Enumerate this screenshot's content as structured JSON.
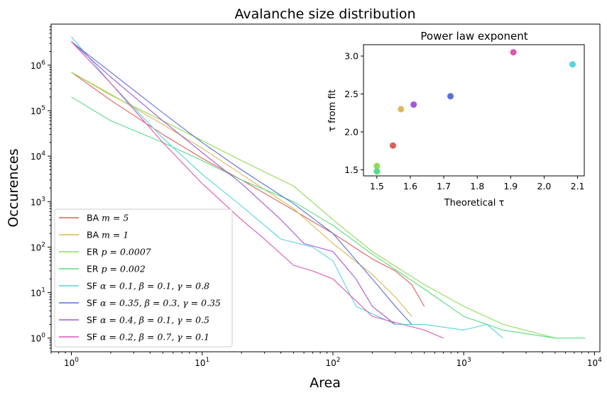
{
  "chart_data": [
    {
      "type": "line",
      "title": "Avalanche size distribution",
      "xlabel": "Area",
      "ylabel": "Occurences",
      "xscale": "log",
      "yscale": "log",
      "xlim": [
        0.7,
        11000
      ],
      "ylim": [
        0.5,
        8000000
      ],
      "xticks": [
        {
          "value": 1,
          "label": "10^0"
        },
        {
          "value": 10,
          "label": "10^1"
        },
        {
          "value": 100,
          "label": "10^2"
        },
        {
          "value": 1000,
          "label": "10^3"
        },
        {
          "value": 10000,
          "label": "10^4"
        }
      ],
      "yticks": [
        {
          "value": 1,
          "label": "10^0"
        },
        {
          "value": 10,
          "label": "10^1"
        },
        {
          "value": 100,
          "label": "10^2"
        },
        {
          "value": 1000,
          "label": "10^3"
        },
        {
          "value": 10000,
          "label": "10^4"
        },
        {
          "value": 100000,
          "label": "10^5"
        },
        {
          "value": 1000000,
          "label": "10^6"
        }
      ],
      "grid": false,
      "legend_position": "lower-left",
      "series": [
        {
          "name": "BA m=5",
          "legend_prefix": "BA ",
          "legend_math": "m = 5",
          "color": "#db5f57",
          "points": [
            [
              1,
              700000
            ],
            [
              2,
              170000
            ],
            [
              5,
              30000
            ],
            [
              10,
              9000
            ],
            [
              20,
              3000
            ],
            [
              50,
              650
            ],
            [
              100,
              200
            ],
            [
              200,
              55
            ],
            [
              300,
              30
            ],
            [
              400,
              15
            ],
            [
              500,
              5
            ]
          ]
        },
        {
          "name": "BA m=1",
          "legend_prefix": "BA ",
          "legend_math": "m = 1",
          "color": "#dbb857",
          "points": [
            [
              1,
              700000
            ],
            [
              2,
              230000
            ],
            [
              5,
              50000
            ],
            [
              10,
              15000
            ],
            [
              20,
              4000
            ],
            [
              50,
              700
            ],
            [
              100,
              120
            ],
            [
              200,
              25
            ],
            [
              300,
              8
            ],
            [
              400,
              3
            ]
          ]
        },
        {
          "name": "ER p=0.0007",
          "legend_prefix": "ER ",
          "legend_math": "p = 0.0007",
          "color": "#91db57",
          "points": [
            [
              1,
              700000
            ],
            [
              2,
              220000
            ],
            [
              5,
              60000
            ],
            [
              10,
              22000
            ],
            [
              20,
              8000
            ],
            [
              50,
              2200
            ],
            [
              100,
              400
            ],
            [
              200,
              80
            ],
            [
              500,
              15
            ],
            [
              1000,
              5
            ],
            [
              2000,
              2
            ],
            [
              5000,
              1
            ]
          ]
        },
        {
          "name": "ER p=0.002",
          "legend_prefix": "ER ",
          "legend_math": "p = 0.002",
          "color": "#57db80",
          "points": [
            [
              1,
              200000
            ],
            [
              2,
              60000
            ],
            [
              5,
              20000
            ],
            [
              10,
              8000
            ],
            [
              20,
              3000
            ],
            [
              50,
              1000
            ],
            [
              100,
              300
            ],
            [
              200,
              70
            ],
            [
              500,
              12
            ],
            [
              1000,
              3
            ],
            [
              2000,
              1.5
            ],
            [
              5000,
              1
            ],
            [
              8500,
              1
            ]
          ]
        },
        {
          "name": "SF α=0.1, β=0.1, γ=0.8",
          "legend_prefix": "SF ",
          "legend_math": "α = 0.1, β = 0.1, γ = 0.8",
          "color": "#57d3db",
          "points": [
            [
              1,
              4200000
            ],
            [
              2,
              400000
            ],
            [
              5,
              25000
            ],
            [
              10,
              4000
            ],
            [
              20,
              800
            ],
            [
              40,
              150
            ],
            [
              70,
              100
            ],
            [
              100,
              50
            ],
            [
              150,
              5
            ],
            [
              300,
              2
            ],
            [
              500,
              2
            ],
            [
              1000,
              1.5
            ],
            [
              1500,
              2
            ],
            [
              2000,
              1
            ]
          ]
        },
        {
          "name": "SF α=0.35, β=0.3, γ=0.35",
          "legend_prefix": "SF ",
          "legend_math": "α = 0.35, β = 0.3, γ = 0.35",
          "color": "#5770db",
          "points": [
            [
              1,
              3300000
            ],
            [
              2,
              700000
            ],
            [
              5,
              90000
            ],
            [
              10,
              20000
            ],
            [
              20,
              5000
            ],
            [
              50,
              900
            ],
            [
              100,
              200
            ],
            [
              200,
              20
            ],
            [
              300,
              5
            ],
            [
              400,
              2
            ]
          ]
        },
        {
          "name": "SF α=0.4, β=0.1, γ=0.5",
          "legend_prefix": "SF ",
          "legend_math": "α = 0.4, β = 0.1, γ = 0.5",
          "color": "#a157db",
          "points": [
            [
              1,
              3300000
            ],
            [
              2,
              550000
            ],
            [
              5,
              60000
            ],
            [
              10,
              12000
            ],
            [
              20,
              2500
            ],
            [
              40,
              400
            ],
            [
              60,
              120
            ],
            [
              100,
              80
            ],
            [
              150,
              20
            ],
            [
              200,
              5
            ],
            [
              300,
              2
            ]
          ]
        },
        {
          "name": "SF α=0.2, β=0.7, γ=0.1",
          "legend_prefix": "SF ",
          "legend_math": "α = 0.2, β = 0.7, γ = 0.1",
          "color": "#db57b2",
          "points": [
            [
              1,
              3300000
            ],
            [
              2,
              400000
            ],
            [
              5,
              20000
            ],
            [
              10,
              2500
            ],
            [
              20,
              400
            ],
            [
              30,
              150
            ],
            [
              50,
              40
            ],
            [
              70,
              30
            ],
            [
              100,
              20
            ],
            [
              200,
              3
            ],
            [
              500,
              1.5
            ],
            [
              700,
              1
            ]
          ]
        }
      ]
    },
    {
      "type": "scatter",
      "title": "Power law exponent",
      "xlabel": "Theoretical τ",
      "ylabel": "τ from fit",
      "xlim": [
        1.46,
        2.12
      ],
      "ylim": [
        1.42,
        3.15
      ],
      "xticks": [
        1.5,
        1.6,
        1.7,
        1.8,
        1.9,
        2.0,
        2.1
      ],
      "xtick_labels": [
        "1.5",
        "1.6",
        "1.7",
        "1.8",
        "1.9",
        "2.0",
        "2.1"
      ],
      "yticks": [
        1.5,
        2.0,
        2.5,
        3.0
      ],
      "ytick_labels": [
        "1.5",
        "2.0",
        "2.5",
        "3.0"
      ],
      "grid": false,
      "points": [
        {
          "x": 1.5,
          "y": 1.55,
          "color": "#91db57"
        },
        {
          "x": 1.5,
          "y": 1.48,
          "color": "#57db80"
        },
        {
          "x": 1.548,
          "y": 1.82,
          "color": "#db5f57"
        },
        {
          "x": 1.572,
          "y": 2.3,
          "color": "#dbb857"
        },
        {
          "x": 1.61,
          "y": 2.36,
          "color": "#a157db"
        },
        {
          "x": 1.72,
          "y": 2.47,
          "color": "#5770db"
        },
        {
          "x": 1.908,
          "y": 3.05,
          "color": "#db57b2"
        },
        {
          "x": 2.085,
          "y": 2.89,
          "color": "#57d3db"
        }
      ]
    }
  ]
}
